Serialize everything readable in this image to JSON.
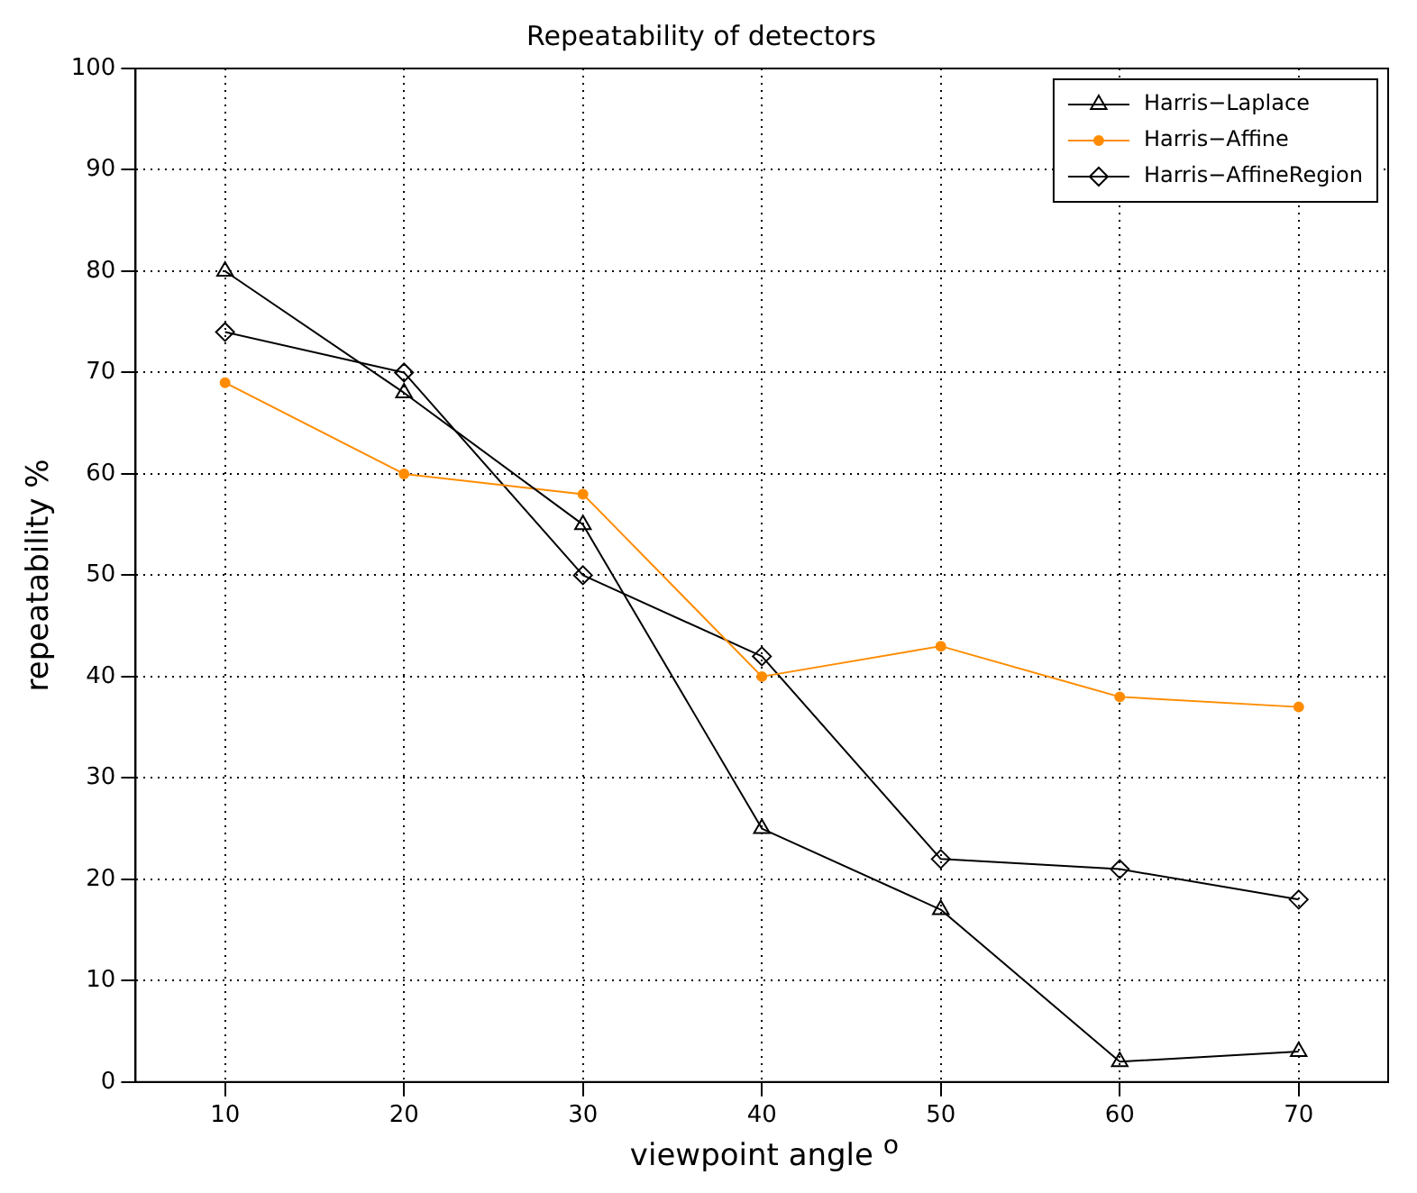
{
  "chart_data": {
    "type": "line",
    "title": "Repeatability of detectors",
    "xlabel": "viewpoint angle $^{o}$",
    "ylabel": "repeatability %",
    "x": [
      10,
      20,
      30,
      40,
      50,
      60,
      70
    ],
    "series": [
      {
        "name": "Harris−Laplace",
        "color": "#000000",
        "marker": "triangle",
        "values": [
          80,
          68,
          55,
          25,
          17,
          2,
          3
        ]
      },
      {
        "name": "Harris−Affine",
        "color": "#ff8c00",
        "marker": "circle",
        "values": [
          69,
          60,
          58,
          40,
          43,
          38,
          37
        ]
      },
      {
        "name": "Harris−AffineRegion",
        "color": "#000000",
        "marker": "diamond",
        "values": [
          74,
          70,
          50,
          42,
          22,
          21,
          18
        ]
      }
    ],
    "xlim": [
      5,
      75
    ],
    "xticks": [
      10,
      20,
      30,
      40,
      50,
      60,
      70
    ],
    "ylim": [
      0,
      100
    ],
    "yticks": [
      0,
      10,
      20,
      30,
      40,
      50,
      60,
      70,
      80,
      90,
      100
    ],
    "grid": true,
    "legend": "top right",
    "line_style": "solid"
  }
}
